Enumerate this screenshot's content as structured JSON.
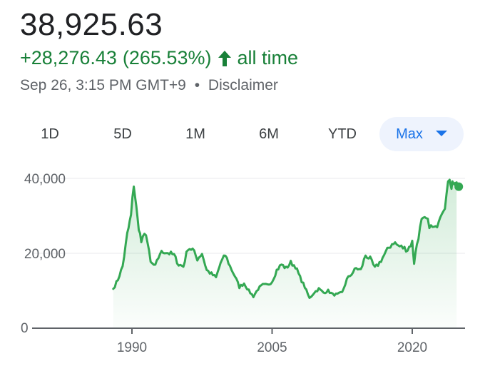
{
  "quote": {
    "price": "38,925.63",
    "change": "+28,276.43",
    "change_pct": "(265.53%)",
    "period": "all time",
    "timestamp": "Sep 26, 3:15 PM GMT+9",
    "separator": "•",
    "disclaimer": "Disclaimer"
  },
  "tabs": [
    {
      "label": "1D"
    },
    {
      "label": "5D"
    },
    {
      "label": "1M"
    },
    {
      "label": "6M"
    },
    {
      "label": "YTD"
    },
    {
      "label": "Max",
      "selected": true
    }
  ],
  "colors": {
    "positive": "#188038",
    "line": "#34a853",
    "accent": "#1a73e8"
  },
  "icons": {
    "change_arrow": "up-arrow-icon",
    "tab_caret": "caret-down-icon"
  },
  "chart_data": {
    "type": "area",
    "x_ticks": [
      "1990",
      "2005",
      "2020"
    ],
    "y_ticks": [
      "0",
      "20,000",
      "40,000"
    ],
    "ylim": [
      0,
      40000
    ],
    "grid": true,
    "x": [
      1988.0,
      1988.5,
      1989.0,
      1989.5,
      1989.9,
      1990.2,
      1990.6,
      1991.0,
      1991.5,
      1992.0,
      1992.5,
      1993.0,
      1993.5,
      1994.0,
      1994.5,
      1995.0,
      1995.5,
      1996.0,
      1996.5,
      1997.0,
      1997.5,
      1998.0,
      1998.5,
      1999.0,
      1999.5,
      2000.0,
      2000.5,
      2001.0,
      2001.5,
      2002.0,
      2002.5,
      2003.0,
      2003.5,
      2004.0,
      2004.5,
      2005.0,
      2005.5,
      2006.0,
      2006.5,
      2007.0,
      2007.5,
      2008.0,
      2008.5,
      2009.0,
      2009.5,
      2010.0,
      2010.5,
      2011.0,
      2011.5,
      2012.0,
      2012.5,
      2013.0,
      2013.5,
      2014.0,
      2014.5,
      2015.0,
      2015.5,
      2016.0,
      2016.5,
      2017.0,
      2017.5,
      2018.0,
      2018.5,
      2019.0,
      2019.5,
      2020.0,
      2020.2,
      2020.5,
      2021.0,
      2021.5,
      2022.0,
      2022.5,
      2023.0,
      2023.5,
      2024.0,
      2024.2,
      2024.4,
      2024.6,
      2024.75
    ],
    "series": [
      {
        "values": [
          10500,
          13000,
          16500,
          25000,
          30000,
          38500,
          29000,
          23000,
          25500,
          17500,
          16500,
          20000,
          20500,
          20000,
          19500,
          17000,
          16500,
          21500,
          21000,
          18500,
          20000,
          15500,
          14500,
          13500,
          17500,
          19500,
          16500,
          14000,
          11000,
          12000,
          10000,
          8500,
          10500,
          11500,
          11500,
          12500,
          15500,
          17000,
          16000,
          17500,
          16500,
          13500,
          11000,
          8000,
          9500,
          10500,
          9500,
          10000,
          9000,
          9000,
          9500,
          13000,
          14500,
          16000,
          15500,
          19500,
          18500,
          16000,
          17500,
          19500,
          21500,
          23000,
          22000,
          21500,
          21000,
          23000,
          17500,
          22500,
          28500,
          29000,
          27000,
          26500,
          30500,
          33000,
          40500,
          38000,
          39500,
          37500,
          38925.63
        ]
      }
    ]
  }
}
